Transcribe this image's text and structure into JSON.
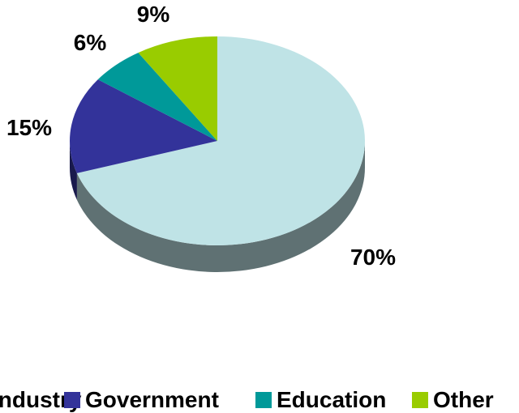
{
  "chart_data": {
    "type": "pie",
    "style": "3d",
    "slices": [
      {
        "label": "Industry",
        "value": 70,
        "display": "70%",
        "color": "#bfe3e6",
        "side_color": "#5f7173"
      },
      {
        "label": "Government",
        "value": 15,
        "display": "15%",
        "color": "#33339a",
        "side_color": "#191a4c"
      },
      {
        "label": "Education",
        "value": 6,
        "display": "6%",
        "color": "#009999",
        "side_color": "#004c4c"
      },
      {
        "label": "Other",
        "value": 9,
        "display": "9%",
        "color": "#99cc00",
        "side_color": "#4c6600"
      }
    ],
    "legend": {
      "placement": "bottom",
      "entries": [
        "Industry",
        "Government",
        "Education",
        "Other"
      ]
    }
  }
}
